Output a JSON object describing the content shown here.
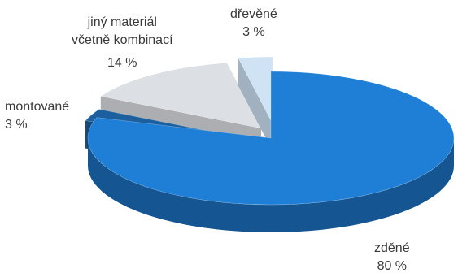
{
  "chart_data": {
    "type": "pie",
    "style": "3d-exploded",
    "slices": [
      {
        "label": "zděné",
        "value": 80,
        "value_label": "80 %",
        "color": "#1f7fd6"
      },
      {
        "label": "montované",
        "value": 3,
        "value_label": "3 %",
        "color": "#1b5f9e"
      },
      {
        "label": "jiný materiál včetně kombinací",
        "label_lines": [
          "jiný materiál",
          "včetně kombinací"
        ],
        "value": 14,
        "value_label": "14 %",
        "color": "#dcdfe3"
      },
      {
        "label": "dřevěné",
        "value": 3,
        "value_label": "3 %",
        "color": "#cfe3f5"
      }
    ]
  }
}
